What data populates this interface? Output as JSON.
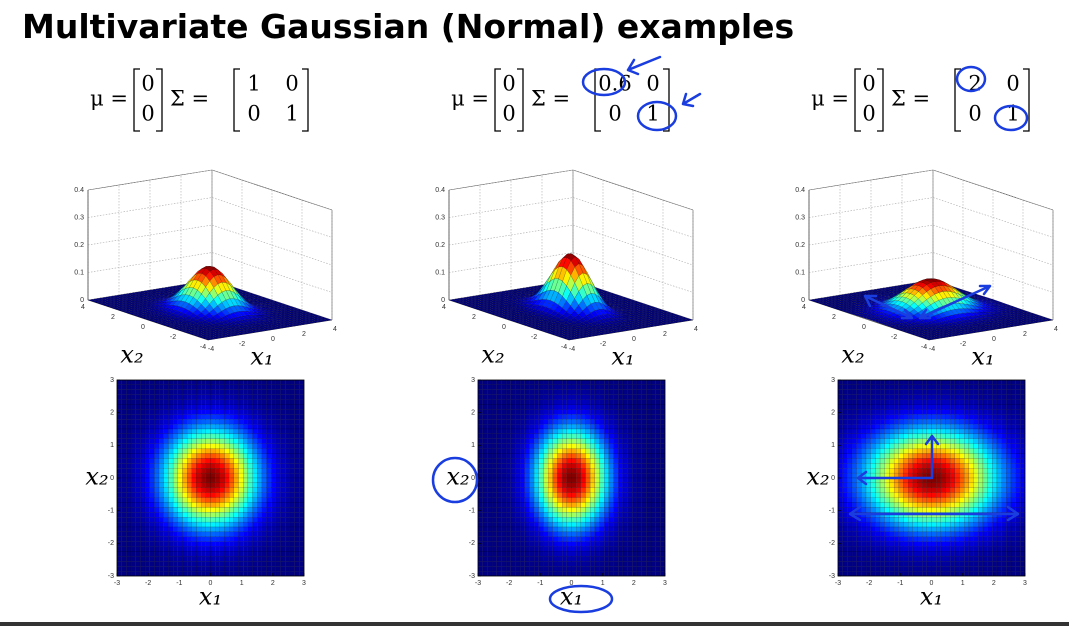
{
  "title": "Multivariate Gaussian (Normal) examples",
  "panels": [
    {
      "mu_symbol": "μ =",
      "sigma_symbol": "Σ =",
      "mu": [
        0,
        0
      ],
      "sigma": [
        [
          1,
          0
        ],
        [
          0,
          1
        ]
      ],
      "surface": {
        "x1_label": "x₁",
        "x2_label": "x₂",
        "xlim": [
          -4,
          4
        ],
        "zlim": [
          0,
          0.4
        ],
        "x1ticks": [
          -4,
          -2,
          0,
          2,
          4
        ],
        "x2ticks": [
          -4,
          -2,
          0,
          2,
          4
        ],
        "zticks": [
          0,
          0.1,
          0.2,
          0.3,
          0.4
        ]
      },
      "heatmap": {
        "x_label": "x₁",
        "y_label": "x₂",
        "xlim": [
          -3,
          3
        ],
        "ylim": [
          -3,
          3
        ],
        "xticks": [
          -3,
          -2,
          -1,
          0,
          1,
          2,
          3
        ],
        "yticks": [
          -3,
          -2,
          -1,
          0,
          1,
          2,
          3
        ]
      }
    },
    {
      "mu_symbol": "μ =",
      "sigma_symbol": "Σ =",
      "mu": [
        0,
        0
      ],
      "sigma": [
        [
          0.6,
          0
        ],
        [
          0,
          1
        ]
      ],
      "surface": {
        "x1_label": "x₁",
        "x2_label": "x₂",
        "xlim": [
          -4,
          4
        ],
        "zlim": [
          0,
          0.4
        ],
        "x1ticks": [
          -4,
          -2,
          0,
          2,
          4
        ],
        "x2ticks": [
          -4,
          -2,
          0,
          2,
          4
        ],
        "zticks": [
          0,
          0.1,
          0.2,
          0.3,
          0.4
        ]
      },
      "heatmap": {
        "x_label": "x₁",
        "y_label": "x₂",
        "xlim": [
          -3,
          3
        ],
        "ylim": [
          -3,
          3
        ],
        "xticks": [
          -3,
          -2,
          -1,
          0,
          1,
          2,
          3
        ],
        "yticks": [
          -3,
          -2,
          -1,
          0,
          1,
          2,
          3
        ]
      }
    },
    {
      "mu_symbol": "μ =",
      "sigma_symbol": "Σ =",
      "mu": [
        0,
        0
      ],
      "sigma": [
        [
          2,
          0
        ],
        [
          0,
          1
        ]
      ],
      "surface": {
        "x1_label": "x₁",
        "x2_label": "x₂",
        "xlim": [
          -4,
          4
        ],
        "zlim": [
          0,
          0.4
        ],
        "x1ticks": [
          -4,
          -2,
          0,
          2,
          4
        ],
        "x2ticks": [
          -4,
          -2,
          0,
          2,
          4
        ],
        "zticks": [
          0,
          0.1,
          0.2,
          0.3,
          0.4
        ]
      },
      "heatmap": {
        "x_label": "x₁",
        "y_label": "x₂",
        "xlim": [
          -3,
          3
        ],
        "ylim": [
          -3,
          3
        ],
        "xticks": [
          -3,
          -2,
          -1,
          0,
          1,
          2,
          3
        ],
        "yticks": [
          -3,
          -2,
          -1,
          0,
          1,
          2,
          3
        ]
      }
    }
  ]
}
